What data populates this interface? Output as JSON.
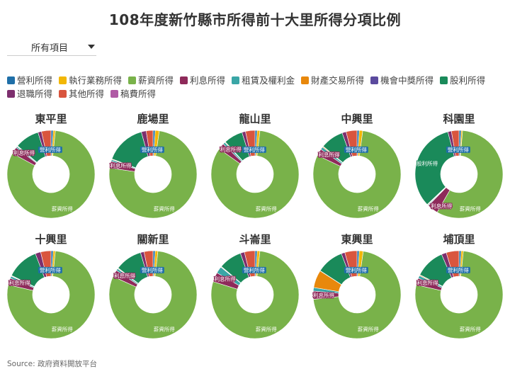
{
  "title": "108年度新竹縣市所得前十大里所得分項比例",
  "dropdown": {
    "label": "所有項目"
  },
  "source": "Source: 政府資料開放平台",
  "legend": [
    {
      "label": "營利所得",
      "color": "#1f6fa8"
    },
    {
      "label": "執行業務所得",
      "color": "#f2b705"
    },
    {
      "label": "薪資所得",
      "color": "#79b24a"
    },
    {
      "label": "利息所得",
      "color": "#8e2a5a"
    },
    {
      "label": "租賃及權利金",
      "color": "#3aa6a6"
    },
    {
      "label": "財產交易所得",
      "color": "#e8880c"
    },
    {
      "label": "機會中獎所得",
      "color": "#5b4a9e"
    },
    {
      "label": "股利所得",
      "color": "#1a8a5a"
    },
    {
      "label": "退職所得",
      "color": "#7d2f6e"
    },
    {
      "label": "其他所得",
      "color": "#d9553e"
    },
    {
      "label": "稿費所得",
      "color": "#b05aa5"
    }
  ],
  "chart_data": [
    {
      "type": "pie",
      "title": "東平里",
      "labels": [
        "營利所得",
        "執行業務所得",
        "薪資所得",
        "利息所得",
        "租賃及權利金",
        "財產交易所得",
        "機會中獎所得",
        "股利所得",
        "退職所得",
        "其他所得",
        "稿費所得"
      ],
      "values": [
        0.8,
        0.8,
        81.3,
        2.5,
        0.5,
        0.2,
        0.1,
        9.0,
        1.3,
        3.5,
        0.0
      ],
      "annotations": [
        "營利所得",
        "利息所得",
        "薪資所得"
      ]
    },
    {
      "type": "pie",
      "title": "鹿場里",
      "labels": [
        "營利所得",
        "執行業務所得",
        "薪資所得",
        "利息所得",
        "租賃及權利金",
        "財產交易所得",
        "機會中獎所得",
        "股利所得",
        "退職所得",
        "其他所得",
        "稿費所得"
      ],
      "values": [
        0.8,
        1.5,
        75.0,
        2.5,
        0.6,
        0.2,
        0.1,
        15.0,
        1.8,
        2.5,
        0.0
      ],
      "annotations": [
        "營利所得",
        "利息所得",
        "薪資所得"
      ]
    },
    {
      "type": "pie",
      "title": "龍山里",
      "labels": [
        "營利所得",
        "執行業務所得",
        "薪資所得",
        "利息所得",
        "租賃及權利金",
        "財產交易所得",
        "機會中獎所得",
        "股利所得",
        "退職所得",
        "其他所得",
        "稿費所得"
      ],
      "values": [
        0.8,
        1.0,
        83.0,
        2.3,
        0.8,
        0.2,
        0.1,
        7.0,
        1.3,
        3.5,
        0.0
      ],
      "annotations": [
        "營利所得",
        "利息所得",
        "薪資所得"
      ]
    },
    {
      "type": "pie",
      "title": "中興里",
      "labels": [
        "營利所得",
        "執行業務所得",
        "薪資所得",
        "利息所得",
        "租賃及權利金",
        "財產交易所得",
        "機會中獎所得",
        "股利所得",
        "退職所得",
        "其他所得",
        "稿費所得"
      ],
      "values": [
        0.8,
        1.3,
        80.0,
        2.5,
        1.0,
        0.3,
        0.1,
        8.5,
        1.5,
        4.0,
        0.0
      ],
      "annotations": [
        "營利所得",
        "利息所得",
        "薪資所得"
      ]
    },
    {
      "type": "pie",
      "title": "科園里",
      "labels": [
        "營利所得",
        "執行業務所得",
        "薪資所得",
        "利息所得",
        "租賃及權利金",
        "財產交易所得",
        "機會中獎所得",
        "股利所得",
        "退職所得",
        "其他所得",
        "稿費所得"
      ],
      "values": [
        0.8,
        0.5,
        57.0,
        4.0,
        0.3,
        0.2,
        0.1,
        33.0,
        1.3,
        2.8,
        0.0
      ],
      "annotations": [
        "營利所得",
        "股利所得",
        "利息所得",
        "薪資所得"
      ]
    },
    {
      "type": "pie",
      "title": "十興里",
      "labels": [
        "營利所得",
        "執行業務所得",
        "薪資所得",
        "利息所得",
        "租賃及權利金",
        "財產交易所得",
        "機會中獎所得",
        "股利所得",
        "退職所得",
        "其他所得",
        "稿費所得"
      ],
      "values": [
        0.8,
        0.8,
        77.0,
        2.5,
        0.8,
        0.2,
        0.1,
        12.0,
        2.0,
        3.8,
        0.0
      ],
      "annotations": [
        "營利所得",
        "利息所得",
        "薪資所得"
      ]
    },
    {
      "type": "pie",
      "title": "關新里",
      "labels": [
        "營利所得",
        "執行業務所得",
        "薪資所得",
        "利息所得",
        "租賃及權利金",
        "財產交易所得",
        "機會中獎所得",
        "股利所得",
        "退職所得",
        "其他所得",
        "稿費所得"
      ],
      "values": [
        0.8,
        1.0,
        80.0,
        2.5,
        0.8,
        0.2,
        0.1,
        10.0,
        1.3,
        3.3,
        0.0
      ],
      "annotations": [
        "營利所得",
        "利息所得",
        "薪資所得"
      ]
    },
    {
      "type": "pie",
      "title": "斗崙里",
      "labels": [
        "營利所得",
        "執行業務所得",
        "薪資所得",
        "利息所得",
        "租賃及權利金",
        "財產交易所得",
        "機會中獎所得",
        "股利所得",
        "退職所得",
        "其他所得",
        "稿費所得"
      ],
      "values": [
        0.8,
        1.0,
        78.0,
        3.5,
        2.5,
        0.2,
        0.1,
        8.5,
        1.5,
        3.9,
        0.0
      ],
      "annotations": [
        "營利所得",
        "利息所得",
        "薪資所得"
      ]
    },
    {
      "type": "pie",
      "title": "東興里",
      "labels": [
        "營利所得",
        "執行業務所得",
        "薪資所得",
        "利息所得",
        "租賃及權利金",
        "財產交易所得",
        "機會中獎所得",
        "股利所得",
        "退職所得",
        "其他所得",
        "稿費所得"
      ],
      "values": [
        0.8,
        1.5,
        71.0,
        3.0,
        1.3,
        6.5,
        0.1,
        10.0,
        1.3,
        4.5,
        0.0
      ],
      "annotations": [
        "營利所得",
        "利息所得",
        "薪資所得"
      ]
    },
    {
      "type": "pie",
      "title": "埔頂里",
      "labels": [
        "營利所得",
        "執行業務所得",
        "薪資所得",
        "利息所得",
        "租賃及權利金",
        "財產交易所得",
        "機會中獎所得",
        "股利所得",
        "退職所得",
        "其他所得",
        "稿費所得"
      ],
      "values": [
        0.8,
        0.8,
        77.0,
        2.5,
        1.0,
        0.3,
        0.1,
        11.0,
        1.8,
        4.7,
        0.0
      ],
      "annotations": [
        "營利所得",
        "利息所得",
        "薪資所得"
      ]
    }
  ]
}
